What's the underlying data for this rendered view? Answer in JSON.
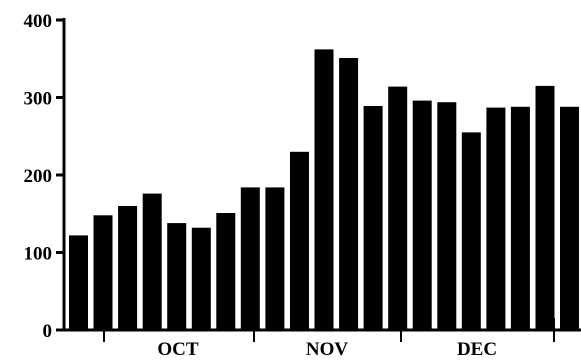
{
  "chart_data": {
    "type": "bar",
    "title": "",
    "xlabel": "",
    "ylabel": "",
    "ylim": [
      0,
      400
    ],
    "yticks": [
      "0",
      "100",
      "200",
      "300",
      "400"
    ],
    "grid": false,
    "bar_color": "#000000",
    "month_labels": [
      "OCT",
      "NOV",
      "DEC"
    ],
    "values": [
      122,
      148,
      160,
      176,
      138,
      132,
      151,
      184,
      184,
      230,
      362,
      351,
      289,
      314,
      296,
      294,
      255,
      287,
      288,
      315,
      288
    ]
  }
}
